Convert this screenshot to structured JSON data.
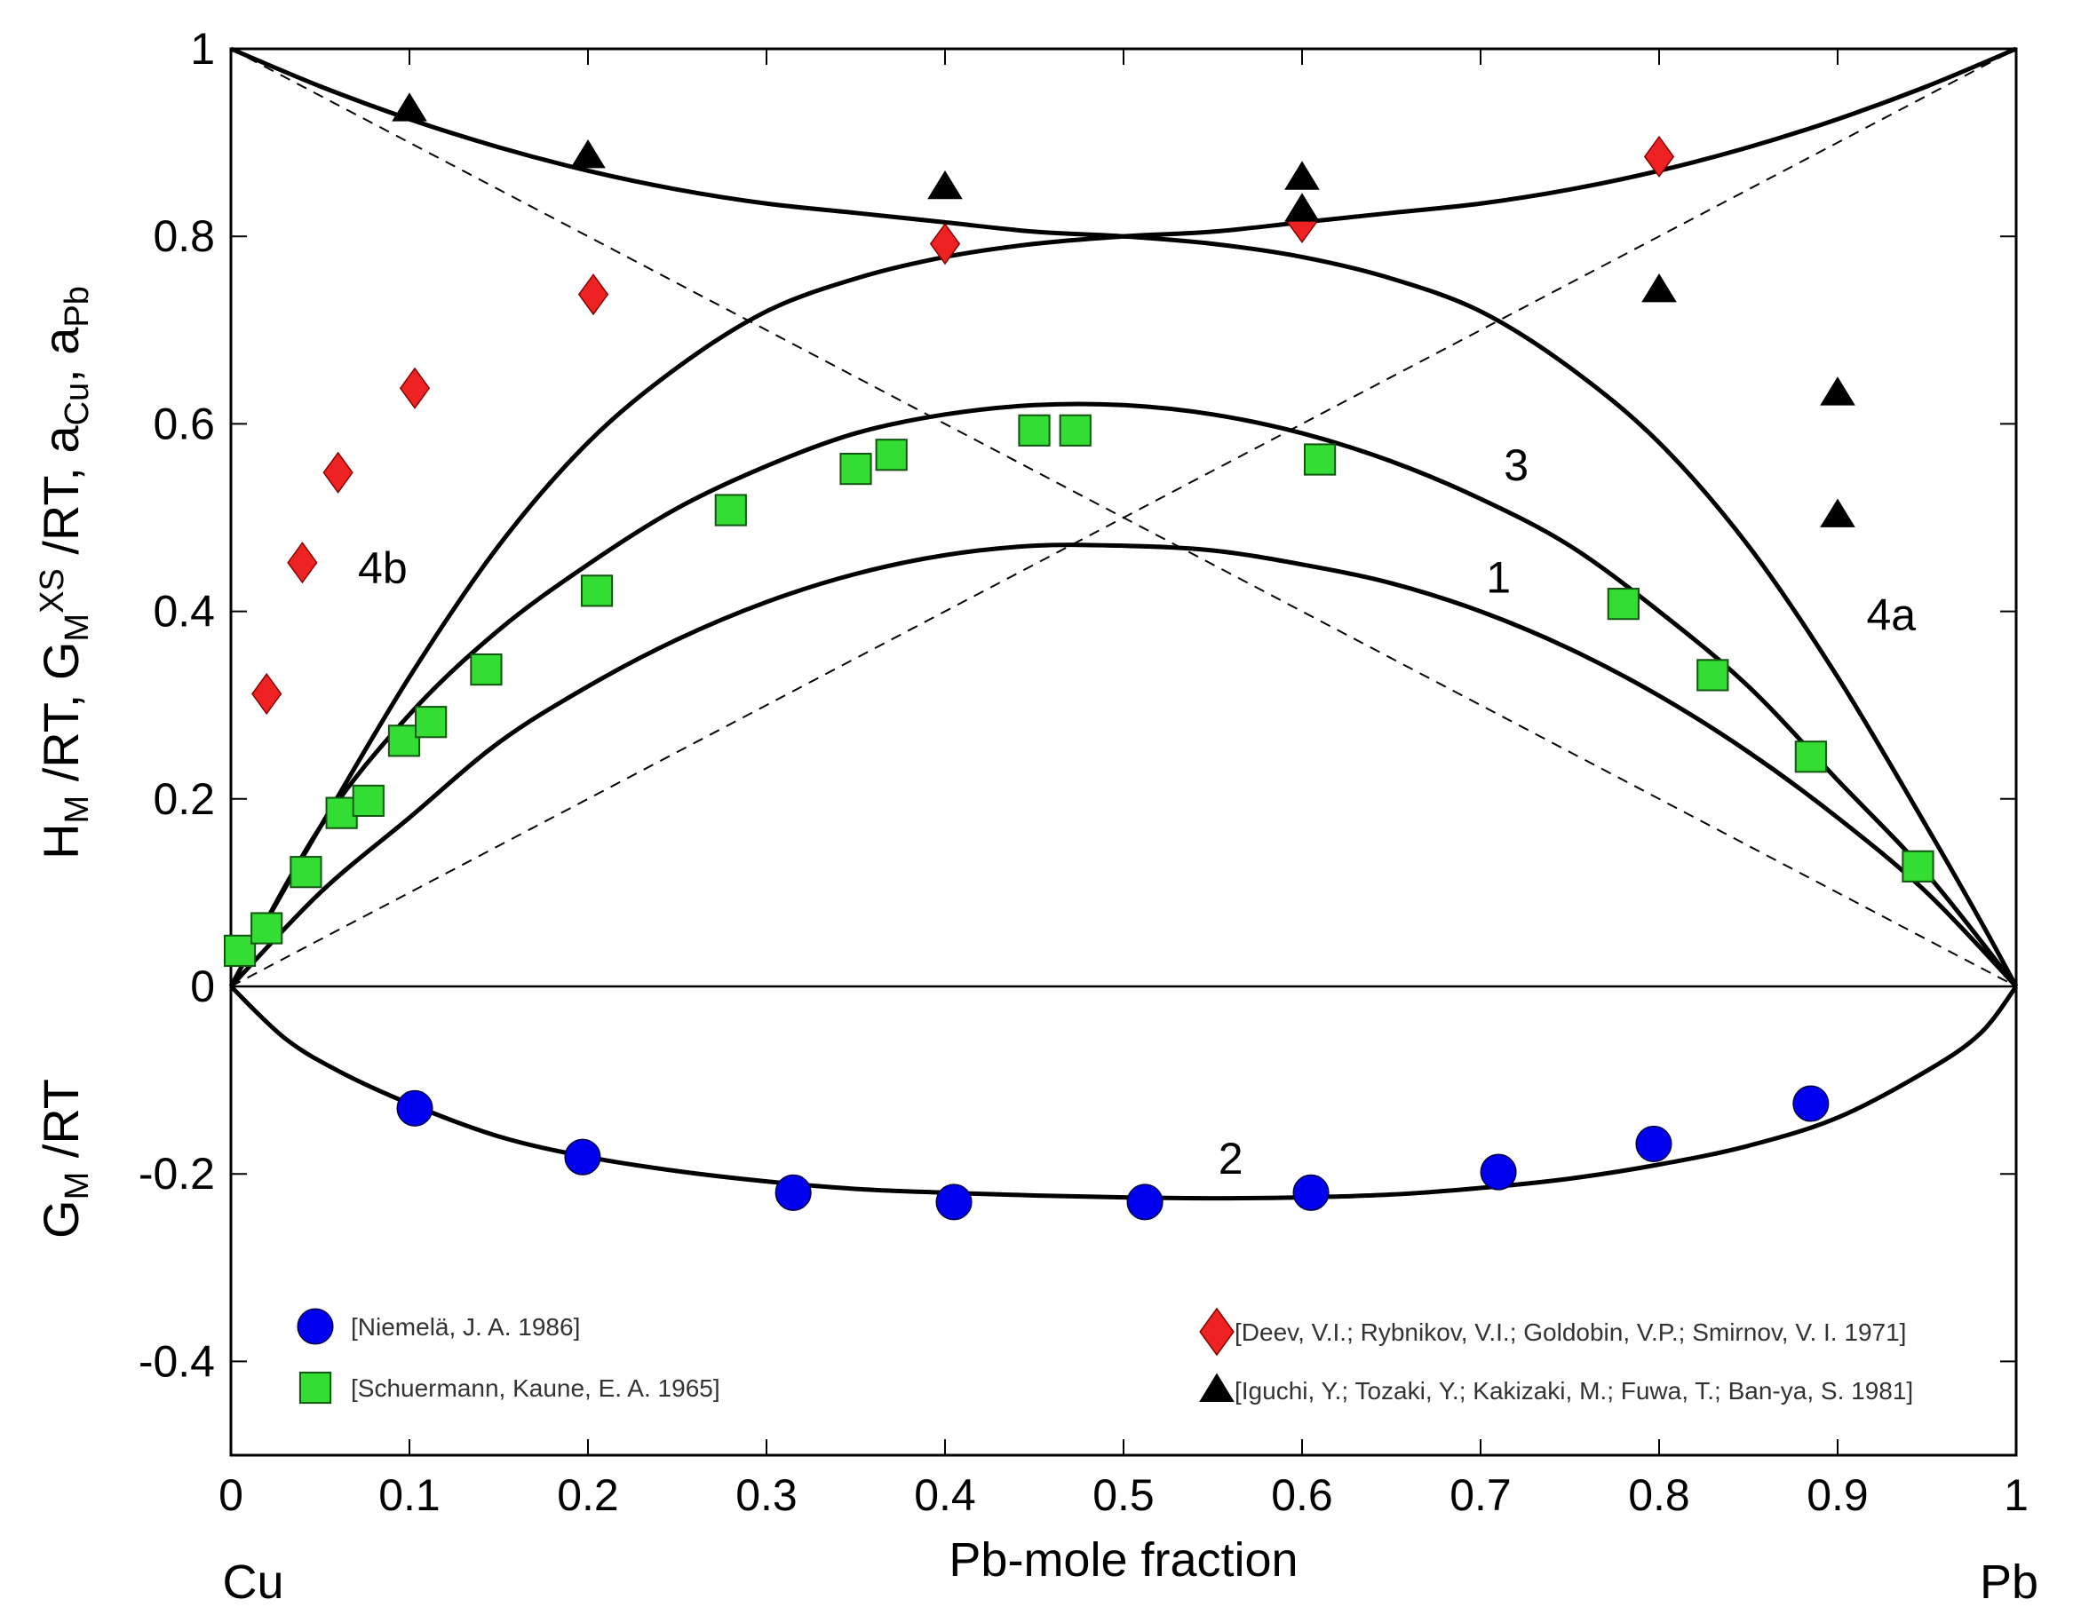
{
  "chart_data": {
    "type": "scatter",
    "xlabel": "Pb-mole fraction",
    "ylabel_upper": {
      "parts": [
        [
          "H",
          ""
        ],
        [
          "M",
          "sub"
        ],
        [
          " /RT, G",
          ""
        ],
        [
          "M",
          "sub"
        ],
        [
          "XS",
          "sup"
        ],
        [
          " /RT, a",
          ""
        ],
        [
          "Cu",
          "sub"
        ],
        [
          ", a",
          ""
        ],
        [
          "Pb",
          "sub"
        ]
      ]
    },
    "ylabel_lower": {
      "parts": [
        [
          "G",
          ""
        ],
        [
          "M",
          "sub"
        ],
        [
          " /RT",
          ""
        ]
      ]
    },
    "end_labels": {
      "left": "Cu",
      "right": "Pb"
    },
    "xlim": [
      0,
      1
    ],
    "ylim": [
      -0.5,
      1
    ],
    "xticks": [
      0,
      0.1,
      0.2,
      0.3,
      0.4,
      0.5,
      0.6,
      0.7,
      0.8,
      0.9,
      1
    ],
    "xtick_labels": [
      "0",
      "0.1",
      "0.2",
      "0.3",
      "0.4",
      "0.5",
      "0.6",
      "0.7",
      "0.8",
      "0.9",
      "1"
    ],
    "yticks": [
      -0.4,
      -0.2,
      0,
      0.2,
      0.4,
      0.6,
      0.8,
      1
    ],
    "ytick_labels": [
      "-0.4",
      "-0.2",
      "0",
      "0.2",
      "0.4",
      "0.6",
      "0.8",
      "1"
    ],
    "curves": [
      {
        "name": "1",
        "label": "1",
        "label_pos": [
          0.71,
          0.42
        ],
        "x": [
          0,
          0.05,
          0.1,
          0.15,
          0.2,
          0.25,
          0.3,
          0.35,
          0.4,
          0.45,
          0.5,
          0.55,
          0.6,
          0.65,
          0.7,
          0.75,
          0.8,
          0.85,
          0.9,
          0.95,
          1
        ],
        "y": [
          0,
          0.1,
          0.18,
          0.26,
          0.32,
          0.37,
          0.41,
          0.44,
          0.46,
          0.47,
          0.47,
          0.465,
          0.45,
          0.43,
          0.4,
          0.36,
          0.31,
          0.25,
          0.18,
          0.1,
          0
        ]
      },
      {
        "name": "2",
        "label": "2",
        "label_pos": [
          0.56,
          -0.2
        ],
        "x": [
          0,
          0.03,
          0.06,
          0.1,
          0.15,
          0.2,
          0.25,
          0.3,
          0.35,
          0.4,
          0.45,
          0.5,
          0.55,
          0.6,
          0.65,
          0.7,
          0.75,
          0.8,
          0.85,
          0.9,
          0.95,
          0.98,
          1
        ],
        "y": [
          0,
          -0.055,
          -0.09,
          -0.125,
          -0.16,
          -0.182,
          -0.197,
          -0.208,
          -0.216,
          -0.22,
          -0.223,
          -0.225,
          -0.226,
          -0.225,
          -0.222,
          -0.215,
          -0.205,
          -0.19,
          -0.17,
          -0.14,
          -0.09,
          -0.05,
          0
        ]
      },
      {
        "name": "3",
        "label": "3",
        "label_pos": [
          0.72,
          0.54
        ],
        "x": [
          0,
          0.05,
          0.1,
          0.15,
          0.2,
          0.25,
          0.3,
          0.35,
          0.4,
          0.45,
          0.5,
          0.55,
          0.6,
          0.65,
          0.7,
          0.75,
          0.8,
          0.85,
          0.9,
          0.95,
          1
        ],
        "y": [
          0,
          0.17,
          0.29,
          0.38,
          0.45,
          0.51,
          0.555,
          0.59,
          0.61,
          0.62,
          0.62,
          0.61,
          0.59,
          0.56,
          0.52,
          0.47,
          0.4,
          0.32,
          0.22,
          0.12,
          0
        ]
      },
      {
        "name": "4a",
        "label": "4a",
        "label_pos": [
          0.93,
          0.38
        ],
        "x": [
          0,
          0.05,
          0.1,
          0.15,
          0.2,
          0.25,
          0.3,
          0.35,
          0.4,
          0.45,
          0.5,
          0.55,
          0.6,
          0.65,
          0.7,
          0.75,
          0.8,
          0.85,
          0.9,
          0.95,
          0.98,
          1
        ],
        "y": [
          1,
          0.96,
          0.925,
          0.895,
          0.87,
          0.85,
          0.835,
          0.825,
          0.815,
          0.805,
          0.8,
          0.792,
          0.778,
          0.755,
          0.72,
          0.66,
          0.58,
          0.47,
          0.33,
          0.17,
          0.07,
          0
        ]
      },
      {
        "name": "4b",
        "label": "4b",
        "label_pos": [
          0.085,
          0.43
        ],
        "x": [
          0,
          0.02,
          0.05,
          0.1,
          0.15,
          0.2,
          0.25,
          0.3,
          0.35,
          0.4,
          0.45,
          0.5,
          0.55,
          0.6,
          0.65,
          0.7,
          0.75,
          0.8,
          0.85,
          0.9,
          0.95,
          1
        ],
        "y": [
          0,
          0.07,
          0.17,
          0.33,
          0.47,
          0.58,
          0.66,
          0.72,
          0.755,
          0.778,
          0.792,
          0.8,
          0.805,
          0.815,
          0.825,
          0.835,
          0.85,
          0.87,
          0.895,
          0.925,
          0.96,
          1
        ]
      },
      {
        "name": "raoult-cu",
        "label": "",
        "dashed": true,
        "x": [
          0,
          1
        ],
        "y": [
          1,
          0
        ]
      },
      {
        "name": "raoult-pb",
        "label": "",
        "dashed": true,
        "x": [
          0,
          1
        ],
        "y": [
          0,
          1
        ]
      },
      {
        "name": "zero-line",
        "label": "",
        "thin": true,
        "x": [
          0,
          1
        ],
        "y": [
          0,
          0
        ]
      }
    ],
    "series": [
      {
        "name": "[Niemelä, J. A. 1986]",
        "marker": "circle",
        "color": "#0000ee",
        "x": [
          0.103,
          0.197,
          0.315,
          0.405,
          0.512,
          0.605,
          0.71,
          0.797,
          0.885
        ],
        "y": [
          -0.13,
          -0.182,
          -0.22,
          -0.23,
          -0.23,
          -0.22,
          -0.198,
          -0.168,
          -0.125
        ]
      },
      {
        "name": "[Schuermann, Kaune, E. A.  1965]",
        "marker": "square",
        "color": "#33dd33",
        "x": [
          0.005,
          0.02,
          0.042,
          0.062,
          0.077,
          0.097,
          0.112,
          0.143,
          0.205,
          0.28,
          0.35,
          0.37,
          0.45,
          0.473,
          0.61,
          0.78,
          0.83,
          0.885,
          0.945
        ],
        "y": [
          0.038,
          0.062,
          0.122,
          0.185,
          0.198,
          0.262,
          0.282,
          0.338,
          0.422,
          0.508,
          0.552,
          0.567,
          0.593,
          0.593,
          0.562,
          0.408,
          0.332,
          0.245,
          0.128
        ]
      },
      {
        "name": "[Deev, V.I.; Rybnikov, V.I.; Goldobin, V.P.; Smirnov, V. I. 1971]",
        "marker": "diamond",
        "color": "#ee2222",
        "x": [
          0.02,
          0.04,
          0.06,
          0.103,
          0.203,
          0.4,
          0.6,
          0.8
        ],
        "y": [
          0.312,
          0.452,
          0.548,
          0.638,
          0.738,
          0.792,
          0.815,
          0.885
        ]
      },
      {
        "name": "[Iguchi, Y.; Tozaki, Y.; Kakizaki, M.; Fuwa, T.; Ban-ya, S. 1981]",
        "marker": "triangle",
        "color": "#000000",
        "x": [
          0.1,
          0.2,
          0.4,
          0.6,
          0.6,
          0.8,
          0.9,
          0.9
        ],
        "y": [
          0.935,
          0.885,
          0.852,
          0.862,
          0.828,
          0.742,
          0.632,
          0.502
        ]
      }
    ],
    "legend": {
      "placement": "bottom inside plot, two columns"
    }
  }
}
